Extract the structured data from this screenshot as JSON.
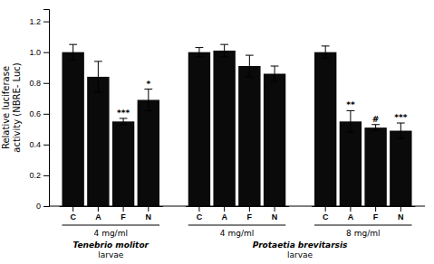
{
  "chart_data": {
    "type": "bar",
    "ylabel": "Relative luciferase\nactivity (NBRE- Luc)",
    "color": "#0a0a0a",
    "grid": false,
    "ylim": [
      0,
      1.28
    ],
    "yticks": [
      0,
      0.2,
      0.4,
      0.6,
      0.8,
      {
        "value": 1.0,
        "label": "1.0"
      },
      1.2
    ],
    "groups": [
      {
        "label": "4 mg/ml",
        "categories": [
          "C",
          "A",
          "F",
          "N"
        ],
        "values": [
          1.0,
          0.84,
          0.55,
          0.69
        ],
        "errors": [
          0.05,
          0.1,
          0.02,
          0.07
        ],
        "significance": [
          null,
          null,
          "***",
          "*"
        ]
      },
      {
        "label": "4 mg/ml",
        "categories": [
          "C",
          "A",
          "F",
          "N"
        ],
        "values": [
          1.0,
          1.01,
          0.91,
          0.86
        ],
        "errors": [
          0.03,
          0.04,
          0.07,
          0.05
        ],
        "significance": [
          null,
          null,
          null,
          null
        ]
      },
      {
        "label": "8 mg/ml",
        "categories": [
          "C",
          "A",
          "F",
          "N"
        ],
        "values": [
          1.0,
          0.55,
          0.51,
          0.49
        ],
        "errors": [
          0.04,
          0.07,
          0.02,
          0.05
        ],
        "significance": [
          null,
          "**",
          "#",
          "***"
        ]
      }
    ],
    "species": [
      {
        "name": "Tenebrio molitor",
        "note": "larvae",
        "groups": [
          0
        ]
      },
      {
        "name": "Protaetia brevitarsis",
        "note": "larvae",
        "groups": [
          1,
          2
        ]
      }
    ]
  }
}
